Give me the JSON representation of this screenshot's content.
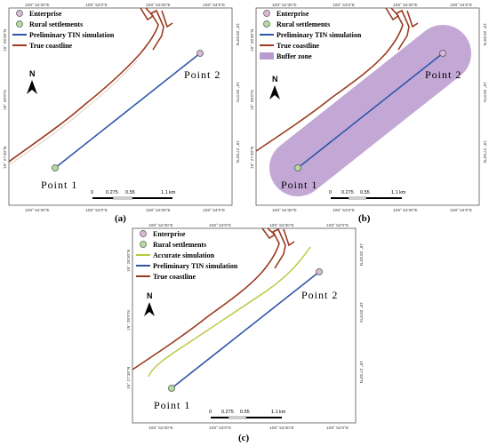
{
  "colors": {
    "enterprise": "#d9b8d8",
    "rural": "#b5dc9b",
    "tin": "#2f57a8",
    "coast": "#9b3a1f",
    "buffer": "#b99ad0",
    "accurate": "#b9c63a"
  },
  "panels": [
    {
      "id": "a",
      "caption": "(a)",
      "top_ticks": [
        "108° 52′30″E",
        "108° 53′0″E",
        "108° 53′30″E",
        "108° 54′0″E"
      ],
      "bottom_ticks": [
        "108° 52′30″E",
        "108° 53′0″E",
        "108° 53′30″E",
        "108° 54′0″E"
      ],
      "left_ticks": [
        "19° 28′30″N",
        "19° 28′0″N",
        "19° 27′30″N"
      ],
      "right_ticks": [
        "19° 28′30″N",
        "19° 28′0″N",
        "19° 27′30″N"
      ],
      "legend": [
        "Enterprise",
        "Rural settlements",
        "Preliminary TIN simulation",
        "True coastline"
      ],
      "point1": "Point 1",
      "point2": "Point 2",
      "north": "N",
      "scale_labels": [
        "0",
        "0.275",
        "0.55",
        "1.1",
        "km"
      ]
    },
    {
      "id": "b",
      "caption": "(b)",
      "top_ticks": [
        "108° 52′30″E",
        "108° 53′0″E",
        "108° 53′30″E",
        "108° 54′0″E"
      ],
      "bottom_ticks": [
        "108° 52′30″E",
        "108° 53′0″E",
        "108° 53′30″E",
        "108° 54′0″E"
      ],
      "left_ticks": [
        "19° 28′30″N",
        "19° 28′0″N",
        "19° 27′30″N"
      ],
      "right_ticks": [
        "19° 28′30″N",
        "19° 28′0″N",
        "19° 27′30″N"
      ],
      "legend": [
        "Enterprise",
        "Rural settlements",
        "Preliminary TIN simulation",
        "True coastline",
        "Buffer zone"
      ],
      "point1": "Point 1",
      "point2": "Point 2",
      "north": "N",
      "scale_labels": [
        "0",
        "0.275",
        "0.55",
        "1.1",
        "km"
      ]
    },
    {
      "id": "c",
      "caption": "(c)",
      "top_ticks": [
        "108° 52′30″E",
        "108° 53′0″E",
        "108° 53′30″E",
        "108° 54′0″E"
      ],
      "bottom_ticks": [
        "108° 52′30″E",
        "108° 53′0″E",
        "108° 53′30″E",
        "108° 54′0″E"
      ],
      "left_ticks": [
        "19° 28′30″N",
        "19° 28′0″N",
        "19° 27′30″N"
      ],
      "right_ticks": [
        "19° 28′30″N",
        "19° 28′0″N",
        "19° 27′30″N"
      ],
      "legend": [
        "Enterprise",
        "Rural settlements",
        "Accurate simulation",
        "Preliminary TIN simulation",
        "True coastline"
      ],
      "point1": "Point 1",
      "point2": "Point 2",
      "north": "N",
      "scale_labels": [
        "0",
        "0.275",
        "0.55",
        "1.1",
        "km"
      ]
    }
  ]
}
